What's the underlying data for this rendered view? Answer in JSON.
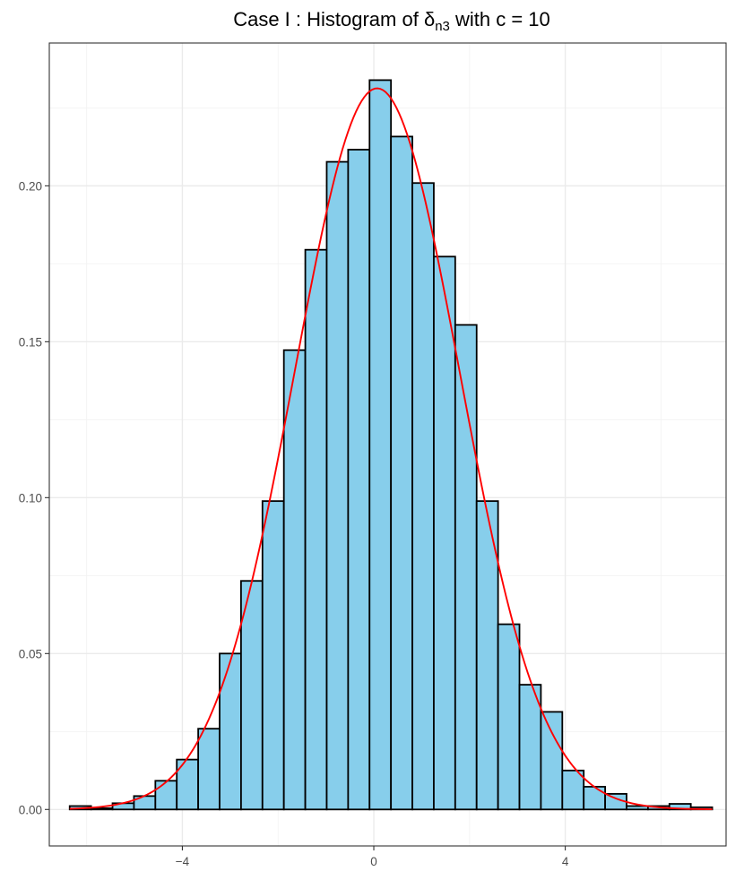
{
  "chart_data": {
    "type": "bar",
    "title": {
      "prefix": "Case I :  Histogram of ",
      "symbol": "δ",
      "subscript": "n3",
      "suffix": " with c = 10"
    },
    "xlabel": "",
    "ylabel": "",
    "xlim": [
      -6.78,
      7.36
    ],
    "ylim": [
      -0.0117,
      0.2458
    ],
    "x_ticks": [
      -4,
      0,
      4
    ],
    "x_tick_labels": [
      "−4",
      "0",
      "4"
    ],
    "x_minor_gridlines": [
      -6,
      -2,
      2,
      6
    ],
    "y_ticks": [
      0.0,
      0.05,
      0.1,
      0.15,
      0.2
    ],
    "y_tick_labels": [
      "0.00",
      "0.05",
      "0.10",
      "0.15",
      "0.20"
    ],
    "y_minor_gridlines": [
      0.025,
      0.075,
      0.125,
      0.175,
      0.225
    ],
    "grid": true,
    "bin_width": 0.4475,
    "bin_left_edges": [
      -6.354,
      -5.9065,
      -5.459,
      -5.0115,
      -4.564,
      -4.1165,
      -3.669,
      -3.2215,
      -2.774,
      -2.3265,
      -1.879,
      -1.4315,
      -0.984,
      -0.5365,
      -0.089,
      0.3585,
      0.806,
      1.2535,
      1.701,
      2.1485,
      2.596,
      3.0435,
      3.491,
      3.9385,
      4.386,
      4.8335,
      5.281,
      5.7285,
      6.176,
      6.6235
    ],
    "values": [
      0.0011,
      0.0004,
      0.002,
      0.0043,
      0.0092,
      0.016,
      0.0259,
      0.05,
      0.0733,
      0.0989,
      0.1473,
      0.1795,
      0.2077,
      0.2116,
      0.2339,
      0.2158,
      0.2009,
      0.1773,
      0.1554,
      0.0989,
      0.0594,
      0.04,
      0.0313,
      0.0125,
      0.0073,
      0.005,
      0.0011,
      0.0011,
      0.0018,
      0.0007
    ],
    "bar_fill": "#87ceeb",
    "bar_outline": "#000000",
    "density_curve": {
      "type": "normal",
      "mean": 0.07,
      "sd": 1.725,
      "x_range": [
        -6.354,
        7.071
      ],
      "color": "#ff0000"
    }
  }
}
